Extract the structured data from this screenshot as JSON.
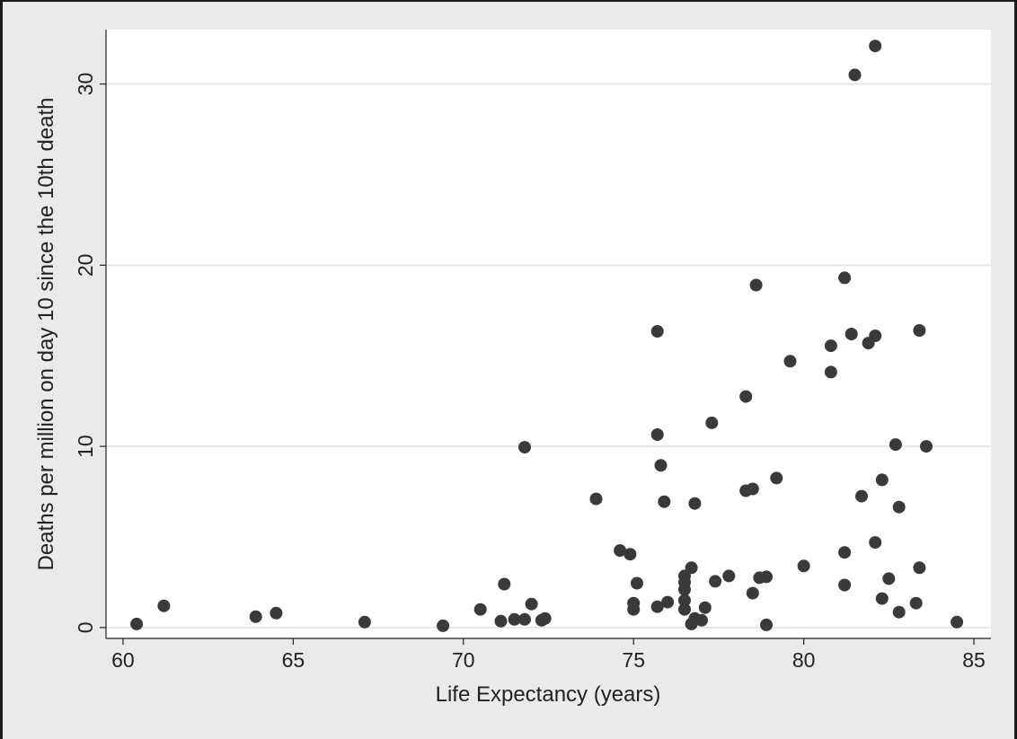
{
  "chart_data": {
    "type": "scatter",
    "xlabel": "Life Expectancy (years)",
    "ylabel": "Deaths per million on day 10 since the 10th death",
    "xlim": [
      59.5,
      85.5
    ],
    "ylim": [
      -0.6,
      33
    ],
    "x_ticks": [
      "60",
      "65",
      "70",
      "75",
      "80",
      "85"
    ],
    "y_ticks": [
      "0",
      "10",
      "20",
      "30"
    ],
    "grid": "horizontal",
    "legend": "none",
    "colors": {
      "marker": "#3a3a3a",
      "plot_bg": "#ffffff",
      "page_bg": "#eaeaea",
      "grid": "#e6e6e6"
    },
    "points": [
      [
        60.4,
        0.2
      ],
      [
        61.2,
        1.2
      ],
      [
        63.9,
        0.6
      ],
      [
        64.5,
        0.8
      ],
      [
        67.1,
        0.3
      ],
      [
        69.4,
        0.1
      ],
      [
        70.5,
        1.0
      ],
      [
        71.1,
        0.35
      ],
      [
        71.2,
        2.4
      ],
      [
        71.5,
        0.45
      ],
      [
        71.8,
        0.45
      ],
      [
        71.8,
        9.95
      ],
      [
        72.0,
        1.3
      ],
      [
        72.3,
        0.4
      ],
      [
        72.4,
        0.5
      ],
      [
        73.9,
        7.1
      ],
      [
        74.6,
        4.25
      ],
      [
        74.9,
        4.05
      ],
      [
        75.0,
        1.0
      ],
      [
        75.0,
        1.35
      ],
      [
        75.1,
        2.45
      ],
      [
        75.7,
        1.15
      ],
      [
        75.7,
        10.65
      ],
      [
        75.7,
        16.35
      ],
      [
        75.8,
        8.95
      ],
      [
        75.9,
        6.95
      ],
      [
        76.0,
        1.4
      ],
      [
        76.5,
        1.0
      ],
      [
        76.5,
        1.5
      ],
      [
        76.5,
        2.1
      ],
      [
        76.5,
        2.5
      ],
      [
        76.5,
        2.85
      ],
      [
        76.7,
        0.2
      ],
      [
        76.7,
        3.3
      ],
      [
        76.8,
        0.5
      ],
      [
        76.8,
        6.85
      ],
      [
        77.0,
        0.4
      ],
      [
        77.1,
        1.1
      ],
      [
        77.3,
        11.3
      ],
      [
        77.4,
        2.55
      ],
      [
        77.8,
        2.85
      ],
      [
        78.3,
        7.55
      ],
      [
        78.3,
        12.75
      ],
      [
        78.5,
        1.9
      ],
      [
        78.5,
        7.65
      ],
      [
        78.6,
        18.9
      ],
      [
        78.7,
        2.75
      ],
      [
        78.9,
        0.15
      ],
      [
        78.9,
        2.8
      ],
      [
        79.2,
        8.25
      ],
      [
        79.6,
        14.7
      ],
      [
        80.0,
        3.4
      ],
      [
        80.8,
        14.1
      ],
      [
        80.8,
        15.55
      ],
      [
        81.2,
        2.35
      ],
      [
        81.2,
        4.15
      ],
      [
        81.2,
        19.3
      ],
      [
        81.4,
        16.2
      ],
      [
        81.5,
        30.5
      ],
      [
        81.7,
        7.25
      ],
      [
        81.9,
        15.7
      ],
      [
        82.1,
        4.7
      ],
      [
        82.1,
        16.1
      ],
      [
        82.1,
        32.1
      ],
      [
        82.3,
        1.6
      ],
      [
        82.3,
        8.15
      ],
      [
        82.5,
        2.7
      ],
      [
        82.7,
        10.1
      ],
      [
        82.8,
        0.85
      ],
      [
        82.8,
        6.65
      ],
      [
        83.3,
        1.35
      ],
      [
        83.4,
        3.3
      ],
      [
        83.4,
        16.4
      ],
      [
        83.6,
        10.0
      ],
      [
        84.5,
        0.3
      ]
    ]
  }
}
